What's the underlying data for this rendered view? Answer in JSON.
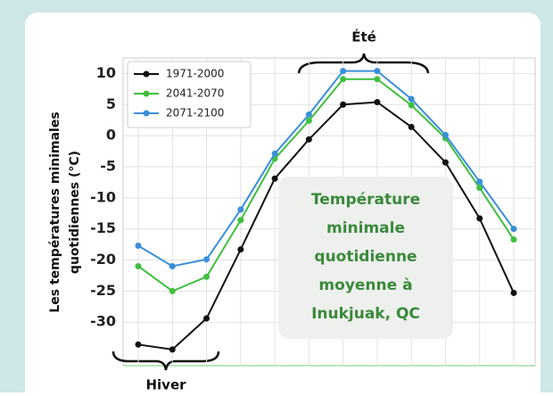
{
  "chart_data": {
    "type": "line",
    "ylabel": [
      "Les températures minimales",
      "quotidiennes  (°C)"
    ],
    "categories": [
      null,
      null,
      null,
      null,
      null,
      null,
      null,
      null,
      null,
      null,
      null,
      null
    ],
    "series": [
      {
        "name": "1971-2000",
        "color": "#111111",
        "values": [
          -33.6,
          -34.4,
          -29.4,
          -18.3,
          -6.9,
          -0.6,
          5,
          5.4,
          1.4,
          -4.3,
          -13.3,
          -25.3
        ]
      },
      {
        "name": "2041-2070",
        "color": "#3fbf3f",
        "values": [
          -21,
          -25,
          -22.7,
          -13.6,
          -3.7,
          2.4,
          9.1,
          9.1,
          4.9,
          -0.4,
          -8.4,
          -16.7
        ]
      },
      {
        "name": "2071-2100",
        "color": "#3a8fd8",
        "values": [
          -17.7,
          -21,
          -19.9,
          -11.9,
          -2.9,
          3.4,
          10.4,
          10.4,
          5.9,
          0.1,
          -7.4,
          -15
        ]
      }
    ],
    "ylim": [
      -37,
      12.5
    ],
    "yticks": [
      10,
      5,
      0,
      -5,
      -10,
      -15,
      -20,
      -25,
      -30
    ],
    "grid": true,
    "legend": "upper left",
    "annotations": {
      "summer": "Été",
      "winter": "Hiver",
      "box": [
        "Température",
        "minimale",
        "quotidienne",
        "moyenne à",
        "Inukjuak, QC"
      ]
    }
  }
}
